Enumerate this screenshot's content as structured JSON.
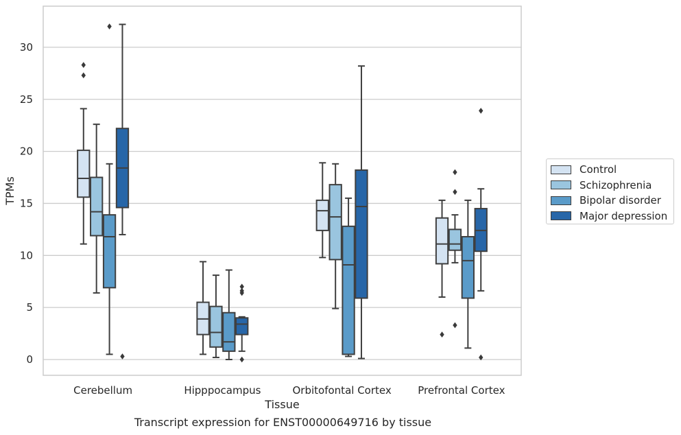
{
  "chart_data": {
    "type": "box",
    "xlabel": "Tissue",
    "ylabel": "TPMs",
    "ylim": [
      -1.5,
      33.5
    ],
    "yticks": [
      0,
      5,
      10,
      15,
      20,
      25,
      30
    ],
    "grid": "horizontal",
    "legend_position": "right",
    "categories": [
      "Cerebellum",
      "Hipppocampus",
      "Orbitofontal Cortex",
      "Prefrontal Cortex"
    ],
    "series": [
      {
        "name": "Control",
        "color": "#d4e3f2",
        "boxes": [
          {
            "whisker_low": 11.1,
            "q1": 15.6,
            "median": 17.4,
            "q3": 20.1,
            "whisker_high": 24.1,
            "outliers": [
              27.3,
              28.3
            ]
          },
          {
            "whisker_low": 0.5,
            "q1": 2.4,
            "median": 3.9,
            "q3": 5.5,
            "whisker_high": 9.4,
            "outliers": []
          },
          {
            "whisker_low": 9.8,
            "q1": 12.4,
            "median": 14.3,
            "q3": 15.3,
            "whisker_high": 18.9,
            "outliers": []
          },
          {
            "whisker_low": 6.0,
            "q1": 9.2,
            "median": 11.1,
            "q3": 13.6,
            "whisker_high": 15.3,
            "outliers": [
              2.4
            ]
          }
        ]
      },
      {
        "name": "Schizophrenia",
        "color": "#9ac5df",
        "boxes": [
          {
            "whisker_low": 6.4,
            "q1": 11.9,
            "median": 14.2,
            "q3": 17.5,
            "whisker_high": 22.6,
            "outliers": []
          },
          {
            "whisker_low": 0.2,
            "q1": 1.2,
            "median": 2.6,
            "q3": 5.1,
            "whisker_high": 8.1,
            "outliers": []
          },
          {
            "whisker_low": 4.9,
            "q1": 9.6,
            "median": 13.7,
            "q3": 16.8,
            "whisker_high": 18.8,
            "outliers": []
          },
          {
            "whisker_low": 9.3,
            "q1": 10.5,
            "median": 11.1,
            "q3": 12.5,
            "whisker_high": 13.9,
            "outliers": [
              3.3,
              16.1,
              18.0
            ]
          }
        ]
      },
      {
        "name": "Bipolar disorder",
        "color": "#5a9bc9",
        "boxes": [
          {
            "whisker_low": 0.5,
            "q1": 6.9,
            "median": 11.8,
            "q3": 13.9,
            "whisker_high": 18.8,
            "outliers": [
              32.0
            ]
          },
          {
            "whisker_low": 0.0,
            "q1": 0.8,
            "median": 1.7,
            "q3": 4.5,
            "whisker_high": 8.6,
            "outliers": []
          },
          {
            "whisker_low": 0.3,
            "q1": 0.5,
            "median": 9.1,
            "q3": 12.8,
            "whisker_high": 15.5,
            "outliers": []
          },
          {
            "whisker_low": 1.1,
            "q1": 5.9,
            "median": 9.5,
            "q3": 11.8,
            "whisker_high": 15.3,
            "outliers": []
          }
        ]
      },
      {
        "name": "Major depression",
        "color": "#2766a8",
        "boxes": [
          {
            "whisker_low": 12.0,
            "q1": 14.6,
            "median": 18.4,
            "q3": 22.2,
            "whisker_high": 32.2,
            "outliers": [
              0.3
            ]
          },
          {
            "whisker_low": 0.8,
            "q1": 2.4,
            "median": 3.4,
            "q3": 4.0,
            "whisker_high": 4.1,
            "outliers": [
              0.0,
              6.4,
              6.6,
              7.0
            ]
          },
          {
            "whisker_low": 0.1,
            "q1": 5.9,
            "median": 14.7,
            "q3": 18.2,
            "whisker_high": 28.2,
            "outliers": []
          },
          {
            "whisker_low": 6.6,
            "q1": 10.4,
            "median": 12.4,
            "q3": 14.5,
            "whisker_high": 16.4,
            "outliers": [
              0.2,
              23.9
            ]
          }
        ]
      }
    ],
    "caption": "Transcript expression for ENST00000649716 by tissue"
  }
}
